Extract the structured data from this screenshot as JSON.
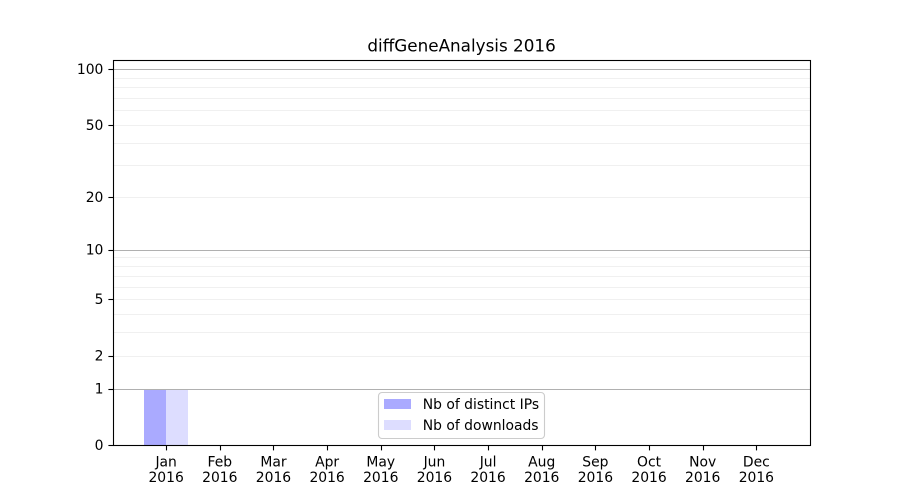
{
  "figure": {
    "background": "#ffffff"
  },
  "chart_data": {
    "type": "bar",
    "title": "diffGeneAnalysis 2016",
    "categories": [
      "Jan",
      "Feb",
      "Mar",
      "Apr",
      "May",
      "Jun",
      "Jul",
      "Aug",
      "Sep",
      "Oct",
      "Nov",
      "Dec"
    ],
    "x_tick_second_line": "2016",
    "series": [
      {
        "name": "Nb of distinct IPs",
        "color": "#aaaaff",
        "values": [
          1,
          0,
          0,
          0,
          0,
          0,
          0,
          0,
          0,
          0,
          0,
          0
        ]
      },
      {
        "name": "Nb of downloads",
        "color": "#ddddff",
        "values": [
          1,
          0,
          0,
          0,
          0,
          0,
          0,
          0,
          0,
          0,
          0,
          0
        ]
      }
    ],
    "yscale": "log1p",
    "ylim": [
      0,
      112
    ],
    "y_tick_labels": [
      "0",
      "1",
      "2",
      "5",
      "10",
      "20",
      "50",
      "100"
    ],
    "y_ticks": [
      0,
      1,
      2,
      5,
      10,
      20,
      50,
      100
    ],
    "y_grid_major": [
      1,
      10,
      100
    ],
    "y_grid_minor": [
      2,
      3,
      4,
      5,
      6,
      7,
      8,
      9,
      20,
      30,
      40,
      50,
      60,
      70,
      80,
      90
    ],
    "legend": {
      "position": "lower center"
    },
    "grid": true,
    "colors": {
      "grid_major": "#b0b0b0",
      "grid_minor": "#f0f0f0",
      "spine": "#000000",
      "tick": "#000000",
      "text": "#000000",
      "legend_border": "#cccccc",
      "legend_bg": "#ffffff"
    }
  }
}
